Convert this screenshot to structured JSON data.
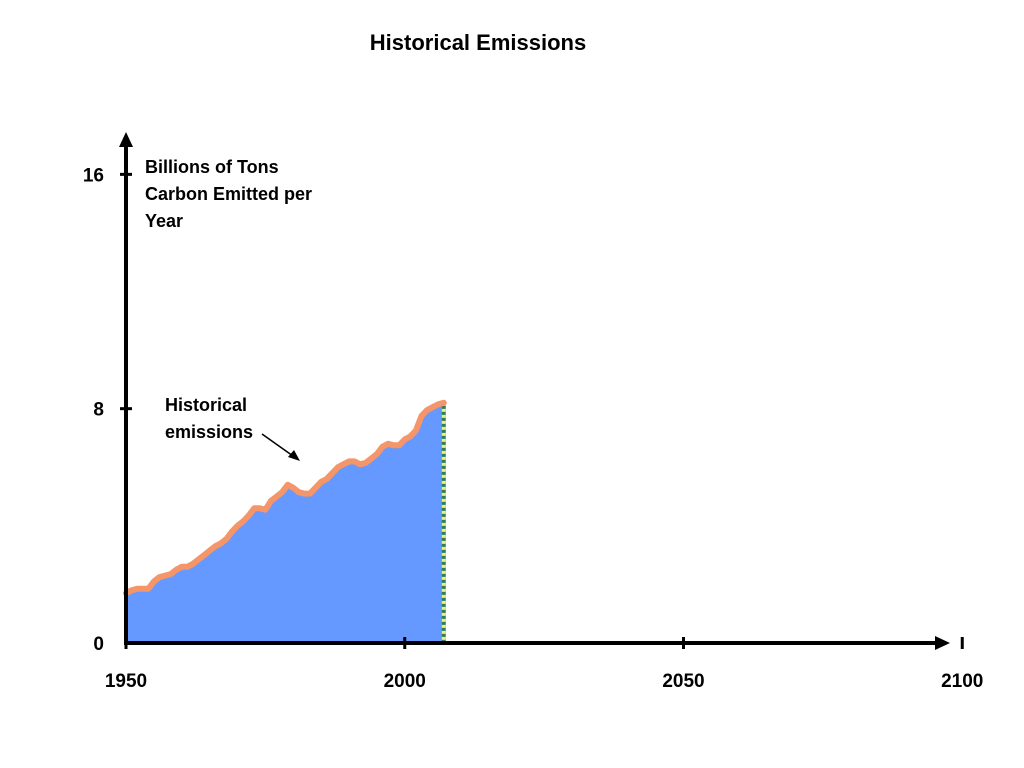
{
  "chart_data": {
    "type": "area",
    "title": "Historical Emissions",
    "ylabel_lines": [
      "Billions of Tons",
      "Carbon Emitted per",
      "Year"
    ],
    "xlabel": "",
    "xlim": [
      1950,
      2110
    ],
    "ylim": [
      0,
      17.6
    ],
    "x_ticks": [
      1950,
      2000,
      2050,
      2100
    ],
    "x_tick_labels": [
      "1950",
      "2000",
      "2050",
      "2100"
    ],
    "y_ticks": [
      0,
      8,
      16
    ],
    "y_tick_labels": [
      "0",
      "8",
      "16"
    ],
    "grid": false,
    "annotation_lines": [
      "Historical",
      "emissions"
    ],
    "colors": {
      "fill": "#6699ff",
      "line": "#f4956a",
      "end_dash": "#e8f080",
      "axis": "#000000"
    },
    "series": [
      {
        "x": [
          1950,
          1951,
          1952,
          1953,
          1954,
          1955,
          1956,
          1957,
          1958,
          1959,
          1960,
          1961,
          1962,
          1963,
          1964,
          1965,
          1966,
          1967,
          1968,
          1969,
          1970,
          1971,
          1972,
          1973,
          1974,
          1975,
          1976,
          1977,
          1978,
          1979,
          1980,
          1981,
          1982,
          1983,
          1984,
          1985,
          1986,
          1987,
          1988,
          1989,
          1990,
          1991,
          1992,
          1993,
          1994,
          1995,
          1996,
          1997,
          1998,
          1999,
          2000,
          2001,
          2002,
          2003,
          2004,
          2005,
          2006,
          2007
        ],
        "values": [
          1.7,
          1.8,
          1.85,
          1.85,
          1.85,
          2.1,
          2.25,
          2.3,
          2.35,
          2.5,
          2.6,
          2.6,
          2.7,
          2.85,
          3.0,
          3.15,
          3.3,
          3.4,
          3.55,
          3.8,
          4.0,
          4.15,
          4.35,
          4.6,
          4.6,
          4.55,
          4.85,
          5.0,
          5.15,
          5.4,
          5.3,
          5.15,
          5.1,
          5.1,
          5.3,
          5.5,
          5.6,
          5.8,
          6.0,
          6.1,
          6.2,
          6.2,
          6.1,
          6.15,
          6.3,
          6.45,
          6.7,
          6.8,
          6.75,
          6.75,
          6.95,
          7.05,
          7.25,
          7.75,
          7.95,
          8.05,
          8.15,
          8.2
        ]
      }
    ]
  }
}
